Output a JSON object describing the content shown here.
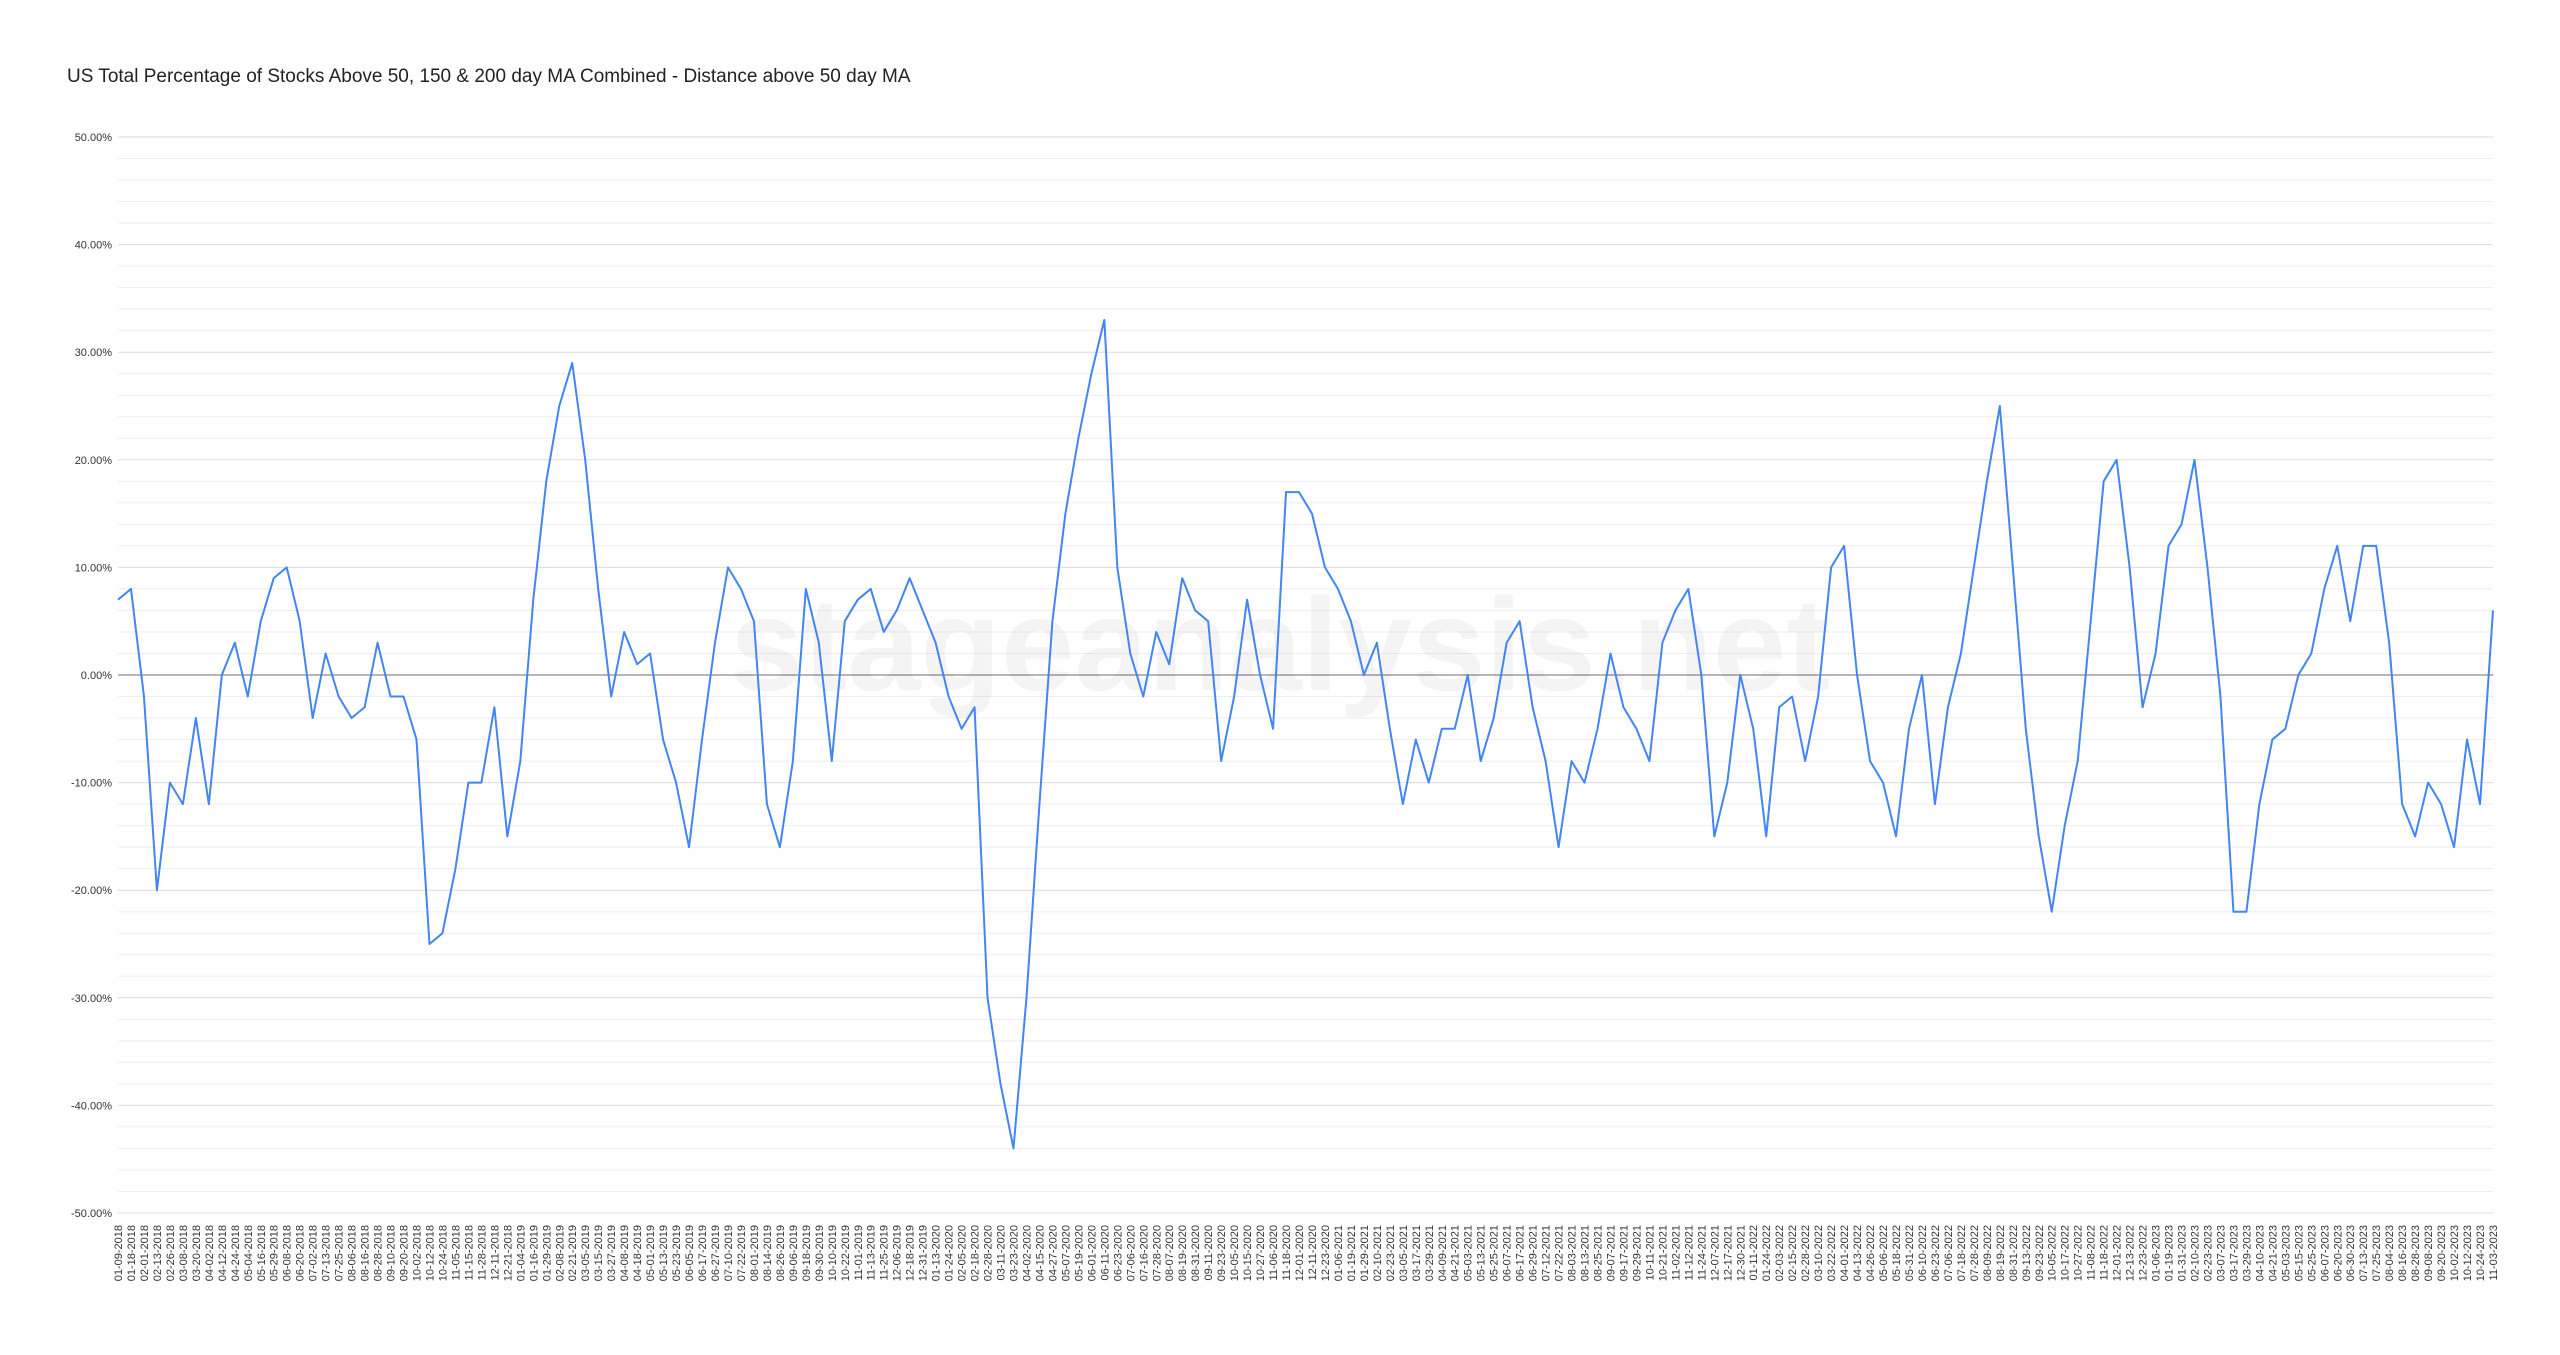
{
  "chart_data": {
    "type": "line",
    "title": "US Total Percentage of Stocks Above 50, 150 & 200 day MA Combined - Distance above 50 day MA",
    "watermark": "stageanalysis.net",
    "ylim": [
      -50,
      50
    ],
    "yticks": [
      {
        "value": 50,
        "label": "50.00%"
      },
      {
        "value": 40,
        "label": "40.00%"
      },
      {
        "value": 30,
        "label": "30.00%"
      },
      {
        "value": 20,
        "label": "20.00%"
      },
      {
        "value": 10,
        "label": "10.00%"
      },
      {
        "value": 0,
        "label": "0.00%"
      },
      {
        "value": -10,
        "label": "-10.00%"
      },
      {
        "value": -20,
        "label": "-20.00%"
      },
      {
        "value": -30,
        "label": "-30.00%"
      },
      {
        "value": -40,
        "label": "-40.00%"
      },
      {
        "value": -50,
        "label": "-50.00%"
      }
    ],
    "grid": true,
    "minor_grid": 5,
    "zero_line": true,
    "categories": [
      "01-09-2018",
      "01-18-2018",
      "02-01-2018",
      "02-13-2018",
      "02-26-2018",
      "03-08-2018",
      "03-20-2018",
      "04-02-2018",
      "04-12-2018",
      "04-24-2018",
      "05-04-2018",
      "05-16-2018",
      "05-29-2018",
      "06-08-2018",
      "06-20-2018",
      "07-02-2018",
      "07-13-2018",
      "07-25-2018",
      "08-06-2018",
      "08-16-2018",
      "08-28-2018",
      "09-10-2018",
      "09-20-2018",
      "10-02-2018",
      "10-12-2018",
      "10-24-2018",
      "11-05-2018",
      "11-15-2018",
      "11-28-2018",
      "12-11-2018",
      "12-21-2018",
      "01-04-2019",
      "01-16-2019",
      "01-29-2019",
      "02-08-2019",
      "02-21-2019",
      "03-05-2019",
      "03-15-2019",
      "03-27-2019",
      "04-08-2019",
      "04-18-2019",
      "05-01-2019",
      "05-13-2019",
      "05-23-2019",
      "06-05-2019",
      "06-17-2019",
      "06-27-2019",
      "07-10-2019",
      "07-22-2019",
      "08-01-2019",
      "08-14-2019",
      "08-26-2019",
      "09-06-2019",
      "09-18-2019",
      "09-30-2019",
      "10-10-2019",
      "10-22-2019",
      "11-01-2019",
      "11-13-2019",
      "11-25-2019",
      "12-06-2019",
      "12-18-2019",
      "12-31-2019",
      "01-13-2020",
      "01-24-2020",
      "02-05-2020",
      "02-18-2020",
      "02-28-2020",
      "03-11-2020",
      "03-23-2020",
      "04-02-2020",
      "04-15-2020",
      "04-27-2020",
      "05-07-2020",
      "05-19-2020",
      "06-01-2020",
      "06-11-2020",
      "06-23-2020",
      "07-06-2020",
      "07-16-2020",
      "07-28-2020",
      "08-07-2020",
      "08-19-2020",
      "08-31-2020",
      "09-11-2020",
      "09-23-2020",
      "10-05-2020",
      "10-15-2020",
      "10-27-2020",
      "11-06-2020",
      "11-18-2020",
      "12-01-2020",
      "12-11-2020",
      "12-23-2020",
      "01-06-2021",
      "01-19-2021",
      "01-29-2021",
      "02-10-2021",
      "02-23-2021",
      "03-05-2021",
      "03-17-2021",
      "03-29-2021",
      "04-09-2021",
      "04-21-2021",
      "05-03-2021",
      "05-13-2021",
      "05-25-2021",
      "06-07-2021",
      "06-17-2021",
      "06-29-2021",
      "07-12-2021",
      "07-22-2021",
      "08-03-2021",
      "08-13-2021",
      "08-25-2021",
      "09-07-2021",
      "09-17-2021",
      "09-29-2021",
      "10-11-2021",
      "10-21-2021",
      "11-02-2021",
      "11-12-2021",
      "11-24-2021",
      "12-07-2021",
      "12-17-2021",
      "12-30-2021",
      "01-11-2022",
      "01-24-2022",
      "02-03-2022",
      "02-15-2022",
      "02-28-2022",
      "03-10-2022",
      "03-22-2022",
      "04-01-2022",
      "04-13-2022",
      "04-26-2022",
      "05-06-2022",
      "05-18-2022",
      "05-31-2022",
      "06-10-2022",
      "06-23-2022",
      "07-06-2022",
      "07-18-2022",
      "07-28-2022",
      "08-09-2022",
      "08-19-2022",
      "08-31-2022",
      "09-13-2022",
      "09-23-2022",
      "10-05-2022",
      "10-17-2022",
      "10-27-2022",
      "11-08-2022",
      "11-18-2022",
      "12-01-2022",
      "12-13-2022",
      "12-23-2022",
      "01-06-2023",
      "01-19-2023",
      "01-31-2023",
      "02-10-2023",
      "02-23-2023",
      "03-07-2023",
      "03-17-2023",
      "03-29-2023",
      "04-10-2023",
      "04-21-2023",
      "05-03-2023",
      "05-15-2023",
      "05-25-2023",
      "06-07-2023",
      "06-20-2023",
      "06-30-2023",
      "07-13-2023",
      "07-25-2023",
      "08-04-2023",
      "08-16-2023",
      "08-28-2023",
      "09-08-2023",
      "09-20-2023",
      "10-02-2023",
      "10-12-2023",
      "10-24-2023",
      "11-03-2023"
    ],
    "series": [
      {
        "color": "#4285f4",
        "values": [
          7,
          8,
          -2,
          -20,
          -10,
          -12,
          -4,
          -12,
          0,
          3,
          -2,
          5,
          9,
          10,
          5,
          -4,
          2,
          -2,
          -4,
          -3,
          3,
          -2,
          -2,
          -6,
          -25,
          -24,
          -18,
          -10,
          -10,
          -3,
          -15,
          -8,
          7,
          18,
          25,
          29,
          20,
          8,
          -2,
          4,
          1,
          2,
          -6,
          -10,
          -16,
          -6,
          3,
          10,
          8,
          5,
          -12,
          -16,
          -8,
          8,
          3,
          -8,
          5,
          7,
          8,
          4,
          6,
          9,
          6,
          3,
          -2,
          -5,
          -3,
          -30,
          -38,
          -44,
          -30,
          -12,
          5,
          15,
          22,
          28,
          33,
          10,
          2,
          -2,
          4,
          1,
          9,
          6,
          5,
          -8,
          -2,
          7,
          0,
          -5,
          17,
          17,
          15,
          10,
          8,
          5,
          0,
          3,
          -5,
          -12,
          -6,
          -10,
          -5,
          -5,
          0,
          -8,
          -4,
          3,
          5,
          -3,
          -8,
          -16,
          -8,
          -10,
          -5,
          2,
          -3,
          -5,
          -8,
          3,
          6,
          8,
          0,
          -15,
          -10,
          0,
          -5,
          -15,
          -3,
          -2,
          -8,
          -2,
          10,
          12,
          0,
          -8,
          -10,
          -15,
          -5,
          0,
          -12,
          -3,
          2,
          10,
          18,
          25,
          10,
          -5,
          -15,
          -22,
          -14,
          -8,
          5,
          18,
          20,
          10,
          -3,
          2,
          12,
          14,
          20,
          10,
          -2,
          -22,
          -22,
          -12,
          -6,
          -5,
          0,
          2,
          8,
          12,
          5,
          12,
          12,
          3,
          -12,
          -15,
          -10,
          -12,
          -16,
          -6,
          -12,
          6
        ]
      }
    ]
  }
}
